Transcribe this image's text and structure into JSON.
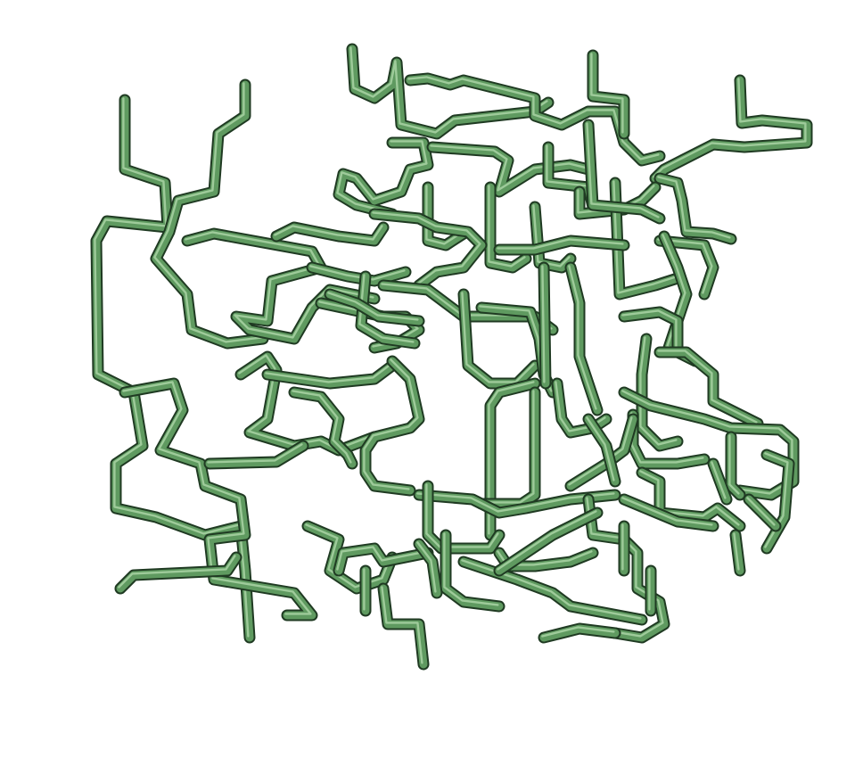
{
  "scene": {
    "subject": "3d-pipe-network",
    "background_color": "#ffffff",
    "pipe_color": "#5f9a60",
    "pipe_shadow_color": "#1f3a22",
    "pipe_highlight_color": "#a9d3a5"
  }
}
